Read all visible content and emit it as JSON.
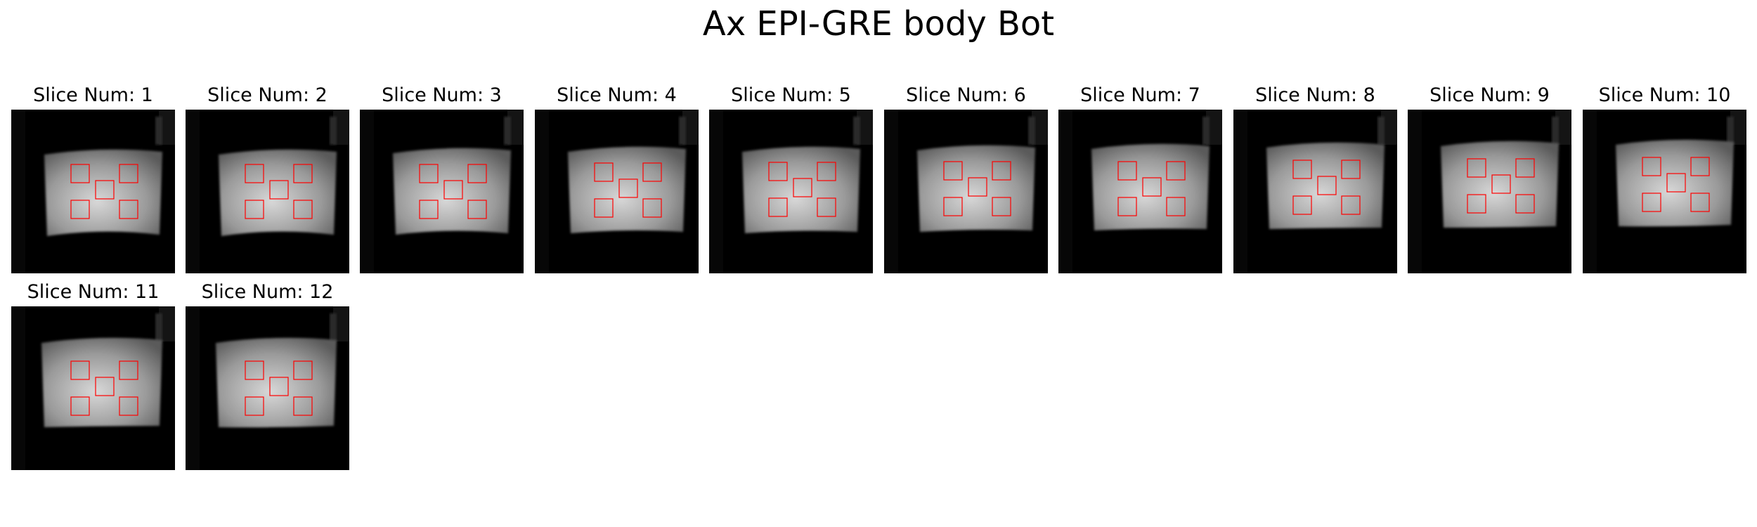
{
  "figure": {
    "title": "Ax EPI-GRE body Bot"
  },
  "panels": [
    {
      "title": "Slice Num: 1"
    },
    {
      "title": "Slice Num: 2"
    },
    {
      "title": "Slice Num: 3"
    },
    {
      "title": "Slice Num: 4"
    },
    {
      "title": "Slice Num: 5"
    },
    {
      "title": "Slice Num: 6"
    },
    {
      "title": "Slice Num: 7"
    },
    {
      "title": "Slice Num: 8"
    },
    {
      "title": "Slice Num: 9"
    },
    {
      "title": "Slice Num: 10"
    },
    {
      "title": "Slice Num: 11"
    },
    {
      "title": "Slice Num: 12"
    }
  ],
  "colors": {
    "roi": "#ff0000",
    "background": "#000000",
    "phantom_center": "#d8d8d8",
    "phantom_edge": "#5a5a5a"
  }
}
